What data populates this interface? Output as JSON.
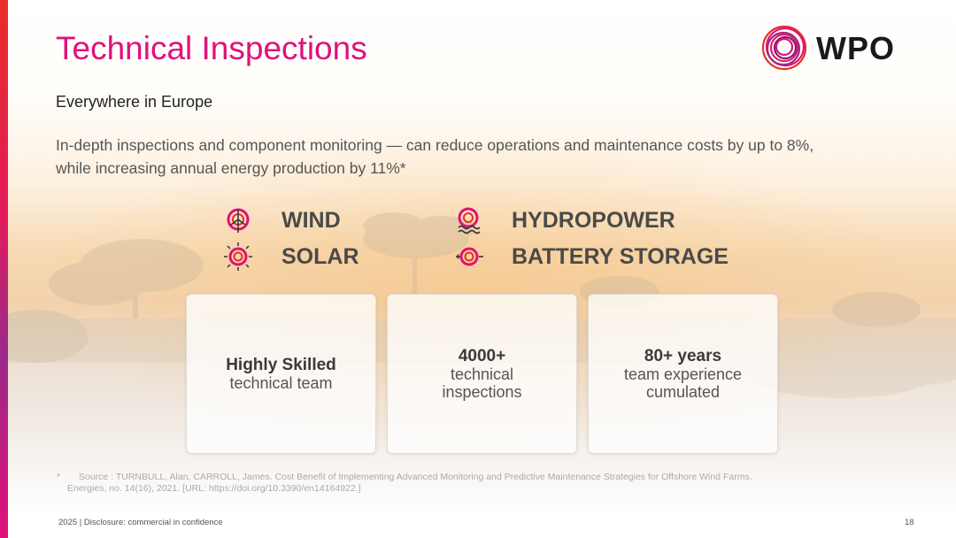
{
  "header": {
    "title": "Technical Inspections",
    "logo_text": "WPO"
  },
  "subtitle": "Everywhere in Europe",
  "intro_text": "In-depth inspections and component monitoring — can reduce operations and maintenance costs by up to 8%, while increasing annual energy production by 11%*",
  "sectors": [
    {
      "label": "WIND",
      "icon": "wind-turbine-icon"
    },
    {
      "label": "HYDROPOWER",
      "icon": "hydropower-icon"
    },
    {
      "label": "SOLAR",
      "icon": "solar-sun-icon"
    },
    {
      "label": "BATTERY STORAGE",
      "icon": "battery-storage-icon"
    }
  ],
  "cards": [
    {
      "strong": "Highly Skilled",
      "light1": "technical team",
      "light2": ""
    },
    {
      "strong": "4000+",
      "light1": "technical",
      "light2": "inspections"
    },
    {
      "strong": "80+ years",
      "light1": "team experience",
      "light2": "cumulated"
    }
  ],
  "footnote": {
    "marker": "*",
    "line1": "Source : TURNBULL, Alan, CARROLL, James. Cost Benefit of Implementing Advanced Monitoring and Predictive Maintenance Strategies for Offshore Wind Farms.",
    "line2": "Energies, no. 14(16), 2021. [URL: https://doi.org/10.3390/en14164922.]"
  },
  "footer": {
    "left": "2025 | Disclosure: commercial in confidence",
    "page_number": "18"
  },
  "colors": {
    "brand_magenta": "#e0117a",
    "brand_red": "#e63027",
    "text_dark": "#4a4a4a"
  }
}
